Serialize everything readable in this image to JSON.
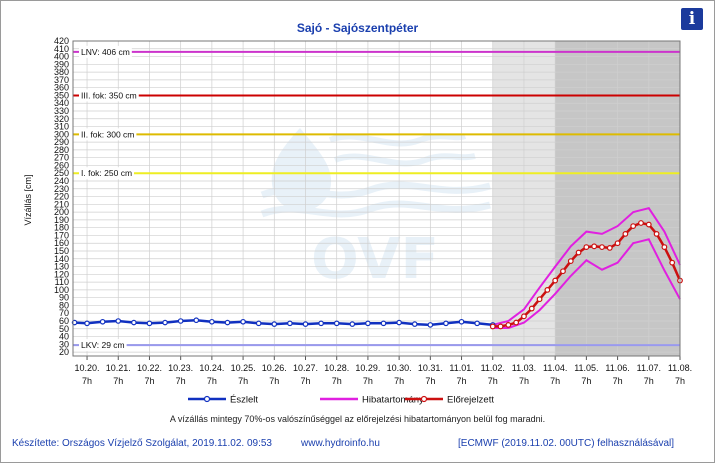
{
  "header": {
    "title": "Sajó - Sajószentpéter",
    "info_icon": "i"
  },
  "colors": {
    "observed": "#1030c0",
    "band": "#e020e0",
    "forecast": "#cc1010",
    "lnv": "#cc33cc",
    "fok3": "#cc0000",
    "fok2": "#ddbb00",
    "fok1": "#eeee22",
    "lkv": "#9999ee",
    "shade_light": "#e4e4e4",
    "shade_dark": "#c6c6c6"
  },
  "chart_data": {
    "type": "line",
    "ylabel": "Vízállás [cm]",
    "ylim": [
      15,
      420
    ],
    "yticks": [
      20,
      30,
      40,
      50,
      60,
      70,
      80,
      90,
      100,
      110,
      120,
      130,
      140,
      150,
      160,
      170,
      180,
      190,
      200,
      210,
      220,
      230,
      240,
      250,
      260,
      270,
      280,
      290,
      300,
      310,
      320,
      330,
      340,
      350,
      360,
      370,
      380,
      390,
      400,
      410,
      420
    ],
    "xlim": [
      -0.45,
      19.0
    ],
    "x_ticks": [
      {
        "date": "10.20.",
        "time": "7h"
      },
      {
        "date": "10.21.",
        "time": "7h"
      },
      {
        "date": "10.22.",
        "time": "7h"
      },
      {
        "date": "10.23.",
        "time": "7h"
      },
      {
        "date": "10.24.",
        "time": "7h"
      },
      {
        "date": "10.25.",
        "time": "7h"
      },
      {
        "date": "10.26.",
        "time": "7h"
      },
      {
        "date": "10.27.",
        "time": "7h"
      },
      {
        "date": "10.28.",
        "time": "7h"
      },
      {
        "date": "10.29.",
        "time": "7h"
      },
      {
        "date": "10.30.",
        "time": "7h"
      },
      {
        "date": "10.31.",
        "time": "7h"
      },
      {
        "date": "11.01.",
        "time": "7h"
      },
      {
        "date": "11.02.",
        "time": "7h"
      },
      {
        "date": "11.03.",
        "time": "7h"
      },
      {
        "date": "11.04.",
        "time": "7h"
      },
      {
        "date": "11.05.",
        "time": "7h"
      },
      {
        "date": "11.06.",
        "time": "7h"
      },
      {
        "date": "11.07.",
        "time": "7h"
      },
      {
        "date": "11.08.",
        "time": "7h"
      }
    ],
    "shaded_regions": [
      {
        "from": 13.0,
        "to": 15.0,
        "shade": "light"
      },
      {
        "from": 15.0,
        "to": 19.0,
        "shade": "dark"
      }
    ],
    "levels": [
      {
        "label": "LNV: 406 cm",
        "value": 406,
        "color_key": "lnv"
      },
      {
        "label": "III. fok: 350 cm",
        "value": 350,
        "color_key": "fok3"
      },
      {
        "label": "II. fok: 300 cm",
        "value": 300,
        "color_key": "fok2"
      },
      {
        "label": "I. fok: 250 cm",
        "value": 250,
        "color_key": "fok1"
      },
      {
        "label": "LKV: 29 cm",
        "value": 29,
        "color_key": "lkv"
      }
    ],
    "series": [
      {
        "name": "Észlelt",
        "x": [
          -0.4,
          0,
          0.5,
          1,
          1.5,
          2,
          2.5,
          3,
          3.5,
          4,
          4.5,
          5,
          5.5,
          6,
          6.5,
          7,
          7.5,
          8,
          8.5,
          9,
          9.5,
          10,
          10.5,
          11,
          11.5,
          12,
          12.5,
          13
        ],
        "values": [
          58,
          57,
          59,
          60,
          58,
          57,
          58,
          60,
          61,
          59,
          58,
          59,
          57,
          56,
          57,
          56,
          57,
          57,
          56,
          57,
          57,
          58,
          56,
          55,
          57,
          59,
          57,
          55
        ]
      },
      {
        "name": "Előrejelzett",
        "x": [
          13.0,
          13.25,
          13.5,
          13.75,
          14.0,
          14.25,
          14.5,
          14.75,
          15.0,
          15.25,
          15.5,
          15.75,
          16.0,
          16.25,
          16.5,
          16.75,
          17.0,
          17.25,
          17.5,
          17.75,
          18.0,
          18.25,
          18.5,
          18.75,
          19.0
        ],
        "values": [
          53,
          53,
          55,
          58,
          66,
          76,
          88,
          100,
          112,
          124,
          137,
          148,
          155,
          156,
          155,
          154,
          160,
          172,
          182,
          186,
          184,
          172,
          155,
          135,
          112
        ]
      },
      {
        "name": "Hibatartomány",
        "x": [
          13.0,
          13.5,
          14.0,
          14.5,
          15.0,
          15.5,
          16.0,
          16.5,
          17.0,
          17.5,
          18.0,
          18.5,
          19.0
        ],
        "upper": [
          55,
          60,
          75,
          103,
          130,
          156,
          175,
          172,
          182,
          200,
          205,
          175,
          132
        ],
        "lower": [
          51,
          51,
          58,
          74,
          95,
          118,
          138,
          126,
          135,
          160,
          165,
          125,
          88
        ]
      }
    ],
    "legend": [
      {
        "label": "Észlelt",
        "color_key": "observed",
        "marker": true
      },
      {
        "label": "Hibatartomány",
        "color_key": "band",
        "marker": false
      },
      {
        "label": "Előrejelzett",
        "color_key": "forecast",
        "marker": true
      }
    ],
    "legend_position": "bottom",
    "grid": true
  },
  "watermark": {
    "text": "OVF"
  },
  "note": "A vízállás mintegy 70%-os valószínűséggel az előrejelzési hibatartományon belül fog maradni.",
  "footer": {
    "credit": "Készítette: Országos Vízjelző Szolgálat, 2019.11.02. 09:53",
    "site": "www.hydroinfo.hu",
    "source": "[ECMWF (2019.11.02. 00UTC) felhasználásával]"
  }
}
